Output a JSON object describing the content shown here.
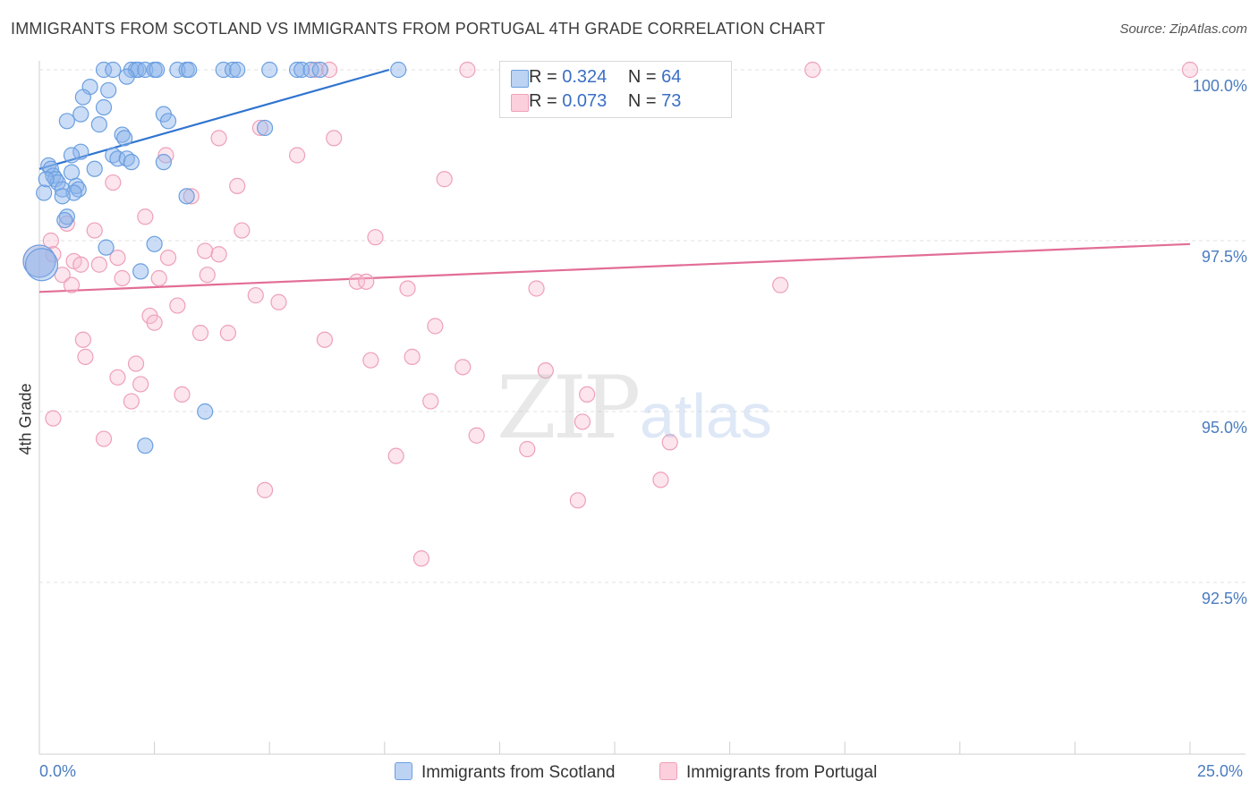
{
  "title": "IMMIGRANTS FROM SCOTLAND VS IMMIGRANTS FROM PORTUGAL 4TH GRADE CORRELATION CHART",
  "source": "Source: ZipAtlas.com",
  "watermark": {
    "zip": "ZIP",
    "atlas": "atlas"
  },
  "legend": {
    "rows": [
      {
        "r_label": "R = ",
        "r_value": "0.324",
        "n_label": "N = ",
        "n_value": "64",
        "color": "#6a9fe0"
      },
      {
        "r_label": "R = ",
        "r_value": "0.073",
        "n_label": "N = ",
        "n_value": "73",
        "color": "#f0a0b8"
      }
    ]
  },
  "bottom_legend": {
    "scotland": "Immigrants from Scotland",
    "portugal": "Immigrants from Portugal"
  },
  "chart_data": {
    "type": "scatter",
    "title": "IMMIGRANTS FROM SCOTLAND VS IMMIGRANTS FROM PORTUGAL 4TH GRADE CORRELATION CHART",
    "xlabel": "",
    "ylabel": "4th Grade",
    "xlim": [
      0.0,
      25.0
    ],
    "ylim": [
      90.2,
      100.4
    ],
    "x_tick_labels": [
      "0.0%",
      "25.0%"
    ],
    "y_ticks": [
      100.0,
      97.5,
      95.0,
      92.5
    ],
    "y_tick_labels": [
      "100.0%",
      "97.5%",
      "95.0%",
      "92.5%"
    ],
    "grid": true,
    "series": [
      {
        "name": "Immigrants from Scotland",
        "color": "#6a9fe0",
        "trend": {
          "x": [
            0.0,
            7.6
          ],
          "y": [
            98.55,
            100.0
          ]
        },
        "points": [
          [
            1.4,
            100.0
          ],
          [
            1.6,
            100.0
          ],
          [
            2.0,
            100.0
          ],
          [
            2.1,
            100.0
          ],
          [
            2.15,
            100.0
          ],
          [
            2.3,
            100.0
          ],
          [
            2.5,
            100.0
          ],
          [
            2.55,
            100.0
          ],
          [
            3.0,
            100.0
          ],
          [
            3.2,
            100.0
          ],
          [
            3.25,
            100.0
          ],
          [
            4.0,
            100.0
          ],
          [
            4.2,
            100.0
          ],
          [
            4.3,
            100.0
          ],
          [
            5.0,
            100.0
          ],
          [
            5.6,
            100.0
          ],
          [
            5.7,
            100.0
          ],
          [
            5.9,
            100.0
          ],
          [
            6.1,
            100.0
          ],
          [
            1.9,
            99.9
          ],
          [
            1.1,
            99.75
          ],
          [
            1.5,
            99.7
          ],
          [
            0.95,
            99.6
          ],
          [
            1.4,
            99.45
          ],
          [
            0.9,
            99.35
          ],
          [
            2.7,
            99.35
          ],
          [
            0.6,
            99.25
          ],
          [
            2.8,
            99.25
          ],
          [
            1.3,
            99.2
          ],
          [
            4.9,
            99.15
          ],
          [
            1.8,
            99.05
          ],
          [
            1.85,
            99.0
          ],
          [
            0.9,
            98.8
          ],
          [
            0.7,
            98.75
          ],
          [
            1.6,
            98.75
          ],
          [
            1.7,
            98.7
          ],
          [
            1.9,
            98.7
          ],
          [
            2.0,
            98.65
          ],
          [
            2.7,
            98.65
          ],
          [
            0.2,
            98.6
          ],
          [
            0.25,
            98.55
          ],
          [
            1.2,
            98.55
          ],
          [
            0.7,
            98.5
          ],
          [
            0.3,
            98.45
          ],
          [
            0.35,
            98.4
          ],
          [
            0.4,
            98.35
          ],
          [
            0.8,
            98.3
          ],
          [
            0.5,
            98.25
          ],
          [
            0.85,
            98.25
          ],
          [
            0.1,
            98.2
          ],
          [
            0.75,
            98.2
          ],
          [
            0.5,
            98.15
          ],
          [
            3.2,
            98.15
          ],
          [
            0.6,
            97.85
          ],
          [
            0.55,
            97.8
          ],
          [
            2.5,
            97.45
          ],
          [
            1.45,
            97.4
          ],
          [
            2.2,
            97.05
          ],
          [
            0.0,
            97.2
          ],
          [
            0.05,
            97.15
          ],
          [
            3.6,
            95.0
          ],
          [
            2.3,
            94.5
          ],
          [
            7.8,
            100.0
          ],
          [
            0.15,
            98.4
          ]
        ]
      },
      {
        "name": "Immigrants from Portugal",
        "color": "#f0a0b8",
        "trend": {
          "x": [
            0.0,
            25.0
          ],
          "y": [
            96.75,
            97.45
          ]
        },
        "points": [
          [
            6.0,
            100.0
          ],
          [
            6.3,
            100.0
          ],
          [
            9.3,
            100.0
          ],
          [
            13.8,
            100.0
          ],
          [
            16.8,
            100.0
          ],
          [
            25.0,
            100.0
          ],
          [
            4.8,
            99.15
          ],
          [
            3.9,
            99.0
          ],
          [
            6.4,
            99.0
          ],
          [
            5.6,
            98.75
          ],
          [
            2.75,
            98.75
          ],
          [
            8.8,
            98.4
          ],
          [
            1.6,
            98.35
          ],
          [
            4.3,
            98.3
          ],
          [
            3.3,
            98.15
          ],
          [
            2.3,
            97.85
          ],
          [
            0.6,
            97.75
          ],
          [
            1.2,
            97.65
          ],
          [
            4.4,
            97.65
          ],
          [
            7.3,
            97.55
          ],
          [
            0.25,
            97.5
          ],
          [
            3.6,
            97.35
          ],
          [
            0.3,
            97.3
          ],
          [
            1.7,
            97.25
          ],
          [
            0.75,
            97.2
          ],
          [
            3.9,
            97.3
          ],
          [
            2.8,
            97.25
          ],
          [
            0.9,
            97.15
          ],
          [
            1.3,
            97.15
          ],
          [
            3.65,
            97.0
          ],
          [
            0.5,
            97.0
          ],
          [
            2.6,
            96.95
          ],
          [
            1.8,
            96.95
          ],
          [
            6.9,
            96.9
          ],
          [
            7.1,
            96.9
          ],
          [
            0.7,
            96.85
          ],
          [
            8.0,
            96.8
          ],
          [
            10.8,
            96.8
          ],
          [
            16.1,
            96.85
          ],
          [
            4.7,
            96.7
          ],
          [
            5.2,
            96.6
          ],
          [
            3.0,
            96.55
          ],
          [
            2.4,
            96.4
          ],
          [
            2.5,
            96.3
          ],
          [
            8.6,
            96.25
          ],
          [
            3.5,
            96.15
          ],
          [
            4.1,
            96.15
          ],
          [
            6.2,
            96.05
          ],
          [
            0.95,
            96.05
          ],
          [
            1.0,
            95.8
          ],
          [
            8.1,
            95.8
          ],
          [
            7.2,
            95.75
          ],
          [
            2.1,
            95.7
          ],
          [
            9.2,
            95.65
          ],
          [
            11.0,
            95.6
          ],
          [
            1.7,
            95.5
          ],
          [
            2.2,
            95.4
          ],
          [
            3.1,
            95.25
          ],
          [
            11.9,
            95.25
          ],
          [
            8.5,
            95.15
          ],
          [
            2.0,
            95.15
          ],
          [
            11.8,
            94.85
          ],
          [
            0.3,
            94.9
          ],
          [
            1.4,
            94.6
          ],
          [
            9.5,
            94.65
          ],
          [
            13.7,
            94.55
          ],
          [
            10.6,
            94.45
          ],
          [
            7.75,
            94.35
          ],
          [
            13.5,
            94.0
          ],
          [
            4.9,
            93.85
          ],
          [
            11.7,
            93.7
          ],
          [
            8.3,
            92.85
          ],
          [
            0.0,
            97.2
          ]
        ]
      }
    ]
  }
}
